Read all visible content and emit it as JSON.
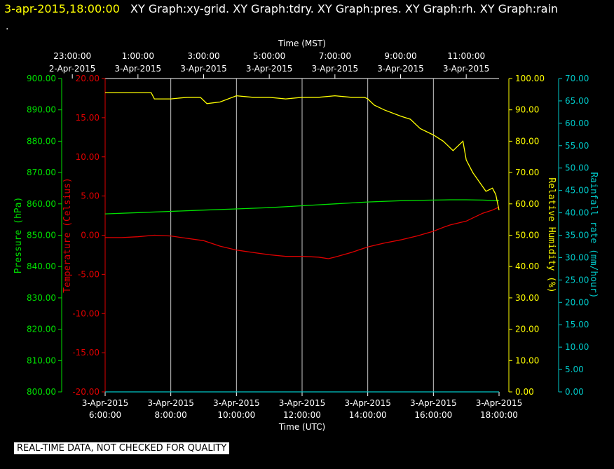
{
  "header": {
    "datetime": "3-apr-2015,18:00:00",
    "graphs": "XY Graph:xy-grid.  XY Graph:tdry.  XY Graph:pres.  XY Graph:rh.  XY Graph:rain",
    "trailing": "."
  },
  "footer": {
    "notice": "REAL-TIME DATA, NOT CHECKED FOR QUALITY"
  },
  "colors": {
    "pressure": "#00e000",
    "temperature": "#e00000",
    "humidity": "#ffff00",
    "rainfall": "#00c8c8",
    "grid": "#c8c8c8",
    "axis_text": "#ffffff"
  },
  "chart_data": {
    "type": "line",
    "grid": true,
    "x_top": {
      "label": "Time (MST)",
      "ticks": [
        {
          "time": "23:00:00",
          "date": "2-Apr-2015"
        },
        {
          "time": "1:00:00",
          "date": "3-Apr-2015"
        },
        {
          "time": "3:00:00",
          "date": "3-Apr-2015"
        },
        {
          "time": "5:00:00",
          "date": "3-Apr-2015"
        },
        {
          "time": "7:00:00",
          "date": "3-Apr-2015"
        },
        {
          "time": "9:00:00",
          "date": "3-Apr-2015"
        },
        {
          "time": "11:00:00",
          "date": "3-Apr-2015"
        }
      ]
    },
    "x_bottom": {
      "label": "Time (UTC)",
      "range_hours": [
        6,
        18
      ],
      "ticks": [
        {
          "date": "3-Apr-2015",
          "time": "6:00:00"
        },
        {
          "date": "3-Apr-2015",
          "time": "8:00:00"
        },
        {
          "date": "3-Apr-2015",
          "time": "10:00:00"
        },
        {
          "date": "3-Apr-2015",
          "time": "12:00:00"
        },
        {
          "date": "3-Apr-2015",
          "time": "14:00:00"
        },
        {
          "date": "3-Apr-2015",
          "time": "16:00:00"
        },
        {
          "date": "3-Apr-2015",
          "time": "18:00:00"
        }
      ]
    },
    "axes": {
      "pressure": {
        "label": "Pressure (hPa)",
        "range": [
          800,
          900
        ],
        "ticks": [
          "800.00",
          "810.00",
          "820.00",
          "830.00",
          "840.00",
          "850.00",
          "860.00",
          "870.00",
          "880.00",
          "890.00",
          "900.00"
        ]
      },
      "temperature": {
        "label": "Temperature (Celsius)",
        "range": [
          -20,
          20
        ],
        "ticks": [
          "-20.00",
          "-15.00",
          "-10.00",
          "-5.00",
          "0.00",
          "5.00",
          "10.00",
          "15.00",
          "20.00"
        ]
      },
      "humidity": {
        "label": "Relative Humidity (%)",
        "range": [
          0,
          100
        ],
        "ticks": [
          "0.00",
          "10.00",
          "20.00",
          "30.00",
          "40.00",
          "50.00",
          "60.00",
          "70.00",
          "80.00",
          "90.00",
          "100.00"
        ]
      },
      "rainfall": {
        "label": "Rainfall rate (mm/hour)",
        "range": [
          0,
          70
        ],
        "ticks": [
          "0.00",
          "5.00",
          "10.00",
          "15.00",
          "20.00",
          "25.00",
          "30.00",
          "35.00",
          "40.00",
          "45.00",
          "50.00",
          "55.00",
          "60.00",
          "65.00",
          "70.00"
        ]
      }
    },
    "series": [
      {
        "name": "Temperature",
        "axis": "temperature",
        "x": [
          6,
          6.5,
          7,
          7.5,
          8,
          8.5,
          9,
          9.5,
          10,
          10.5,
          11,
          11.5,
          12,
          12.5,
          12.8,
          13,
          13.5,
          14,
          14.5,
          15,
          15.5,
          16,
          16.3,
          16.5,
          17,
          17.2,
          17.5,
          17.8,
          18
        ],
        "y": [
          -0.3,
          -0.3,
          -0.2,
          0,
          -0.1,
          -0.4,
          -0.7,
          -1.4,
          -1.9,
          -2.2,
          -2.5,
          -2.7,
          -2.7,
          -2.8,
          -3.0,
          -2.8,
          -2.2,
          -1.5,
          -1.0,
          -0.6,
          -0.1,
          0.5,
          1.0,
          1.3,
          1.8,
          2.2,
          2.8,
          3.2,
          3.6
        ]
      },
      {
        "name": "Pressure",
        "axis": "pressure",
        "x": [
          6,
          7,
          8,
          9,
          10,
          11,
          12,
          13,
          14,
          15,
          16,
          16.5,
          17,
          17.5,
          18
        ],
        "y": [
          856.8,
          857.2,
          857.6,
          858.0,
          858.4,
          858.8,
          859.4,
          860.0,
          860.6,
          861.0,
          861.2,
          861.3,
          861.3,
          861.2,
          861.0
        ]
      },
      {
        "name": "Relative Humidity",
        "axis": "humidity",
        "x": [
          6,
          6.5,
          7,
          7.4,
          7.5,
          8,
          8.5,
          8.9,
          9.1,
          9.5,
          10,
          10.5,
          11,
          11.5,
          12,
          12.5,
          13,
          13.5,
          13.9,
          14,
          14.2,
          14.5,
          15,
          15.3,
          15.6,
          16,
          16.3,
          16.6,
          16.9,
          17,
          17.2,
          17.4,
          17.6,
          17.8,
          17.9,
          18
        ],
        "y": [
          95.5,
          95.5,
          95.5,
          95.5,
          93.5,
          93.5,
          94,
          94,
          92,
          92.5,
          94.5,
          94,
          94,
          93.5,
          94,
          94,
          94.5,
          94,
          94,
          93.5,
          91.5,
          90,
          88,
          87,
          84,
          82,
          80,
          77,
          80,
          74,
          70,
          67,
          64,
          65,
          63,
          58
        ]
      },
      {
        "name": "Rainfall rate",
        "axis": "rainfall",
        "x": [
          6,
          18
        ],
        "y": [
          0,
          0
        ]
      }
    ]
  }
}
